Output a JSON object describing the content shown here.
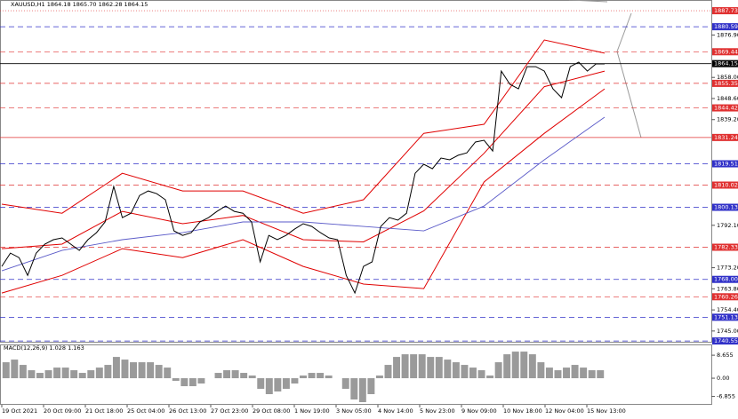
{
  "chart_data": [
    {
      "type": "line",
      "title": "XAUUSD,H1  1864.18 1865.70 1862.28 1864.15",
      "values": [
        1773.8,
        1779.7,
        1777.7,
        1769.8,
        1779.7,
        1783.7,
        1785.7,
        1786.5,
        1783.7,
        1780.9,
        1785.7,
        1788.8,
        1793.6,
        1809.4,
        1795.5,
        1797.5,
        1805.4,
        1807.4,
        1806.2,
        1803.5,
        1789.6,
        1787.6,
        1788.8,
        1793.6,
        1795.5,
        1798.3,
        1800.7,
        1798.3,
        1797.5,
        1793.6,
        1775.8,
        1787.6,
        1785.7,
        1787.6,
        1790.4,
        1792.8,
        1791.6,
        1788.8,
        1786.5,
        1785.7,
        1769.8,
        1761.9,
        1773.8,
        1775.8,
        1791.6,
        1795.5,
        1794.4,
        1797.5,
        1815.3,
        1819.3,
        1817.3,
        1822.1,
        1821.3,
        1823.3,
        1824.4,
        1829.2,
        1830.0,
        1825.2,
        1860.8,
        1854.9,
        1852.9,
        1862.8,
        1862.8,
        1860.8,
        1852.9,
        1849.0,
        1862.8,
        1864.8,
        1860.8,
        1864.0,
        1864.0
      ],
      "color": "#000000",
      "bands": {
        "color": "#e00000",
        "upper": [
          1801.5,
          1797.5,
          1815.3,
          1807.4,
          1807.4,
          1797.5,
          1803.5,
          1833.1,
          1837.1,
          1874.7,
          1868.8
        ],
        "middle": [
          1781.7,
          1783.7,
          1798.3,
          1792.8,
          1796.5,
          1785.7,
          1784.7,
          1798.5,
          1824.2,
          1853.9,
          1860.8
        ],
        "lower": [
          1761.9,
          1769.8,
          1781.7,
          1777.7,
          1785.7,
          1773.8,
          1765.9,
          1763.9,
          1811.4,
          1833.1,
          1852.9
        ]
      },
      "ma": {
        "color": "#5a5ac8",
        "values": [
          1771.8,
          1780.9,
          1785.7,
          1788.8,
          1793.6,
          1793.6,
          1791.6,
          1789.6,
          1800.7,
          1821.3,
          1840.3
        ]
      },
      "levels": [
        {
          "value": 1887.73,
          "label": "1887.73",
          "color": "#e03030",
          "style": "dotted"
        },
        {
          "value": 1880.59,
          "label": "1880.59",
          "color": "#3030c8",
          "style": "dashed"
        },
        {
          "value": 1869.44,
          "label": "1869.44",
          "color": "#e03030",
          "style": "dashed"
        },
        {
          "value": 1864.15,
          "label": "1864.15",
          "color": "#000000",
          "style": "solid"
        },
        {
          "value": 1855.35,
          "label": "1855.35",
          "color": "#e03030",
          "style": "dashed"
        },
        {
          "value": 1844.42,
          "label": "1844.42",
          "color": "#e03030",
          "style": "dashed"
        },
        {
          "value": 1831.24,
          "label": "1831.24",
          "color": "#e03030",
          "style": "solid"
        },
        {
          "value": 1819.51,
          "label": "1819.51",
          "color": "#3030c8",
          "style": "dashed"
        },
        {
          "value": 1810.02,
          "label": "1810.02",
          "color": "#e03030",
          "style": "dashed"
        },
        {
          "value": 1800.13,
          "label": "1800.13",
          "color": "#3030c8",
          "style": "dashed"
        },
        {
          "value": 1782.33,
          "label": "1782.33",
          "color": "#e03030",
          "style": "dashed"
        },
        {
          "value": 1768.0,
          "label": "1768.00",
          "color": "#3030c8",
          "style": "dashed"
        },
        {
          "value": 1760.26,
          "label": "1760.26",
          "color": "#e03030",
          "style": "dashed"
        },
        {
          "value": 1751.13,
          "label": "1751.13",
          "color": "#3030c8",
          "style": "dashed"
        },
        {
          "value": 1740.55,
          "label": "1740.55",
          "color": "#3030c8",
          "style": "dashed"
        }
      ],
      "ylim": [
        1740.2,
        1892.5
      ],
      "yticks": [
        {
          "value": 1876.9,
          "label": "1876.90"
        },
        {
          "value": 1858,
          "label": "1858.00"
        },
        {
          "value": 1848.6,
          "label": "1848.60"
        },
        {
          "value": 1839.2,
          "label": "1839.20"
        },
        {
          "value": 1792.1,
          "label": "1792.10"
        },
        {
          "value": 1773.2,
          "label": "1773.20"
        },
        {
          "value": 1763.8,
          "label": "1763.80"
        },
        {
          "value": 1754.4,
          "label": "1754.40"
        },
        {
          "value": 1745,
          "label": "1745.00"
        }
      ],
      "x_tick_labels": [
        "19 Oct 2021",
        "20 Oct 09:00",
        "21 Oct 18:00",
        "25 Oct 04:00",
        "26 Oct 13:00",
        "27 Oct 23:00",
        "29 Oct 08:00",
        "1 Nov 19:00",
        "3 Nov 05:00",
        "4 Nov 14:00",
        "5 Nov 23:00",
        "9 Nov 09:00",
        "10 Nov 18:00",
        "12 Nov 04:00",
        "15 Nov 13:00"
      ]
    },
    {
      "type": "bar",
      "title": "MACD(12,26,9) 1.028 1.163",
      "values": [
        6,
        7,
        5,
        3,
        2,
        3,
        4,
        4,
        3,
        2,
        3,
        4,
        5,
        8,
        7,
        6,
        6,
        6,
        5,
        4,
        -1,
        -3,
        -3,
        -2,
        0,
        2,
        3,
        3,
        2,
        1,
        -4,
        -6,
        -5,
        -4,
        -2,
        1,
        2,
        2,
        1,
        0,
        -4,
        -8,
        -9,
        -6,
        1,
        5,
        8,
        9,
        9,
        9,
        8,
        8,
        7,
        6,
        5,
        4,
        3,
        1,
        6,
        9,
        10,
        10,
        9,
        6,
        4,
        3,
        4,
        5,
        4,
        3,
        3
      ],
      "color": "#9a9a9a",
      "ylim": [
        -10,
        12.7
      ],
      "yticks": [
        8.655,
        {
          "value": 0,
          "label": "0.00"
        },
        -6.855
      ]
    }
  ]
}
